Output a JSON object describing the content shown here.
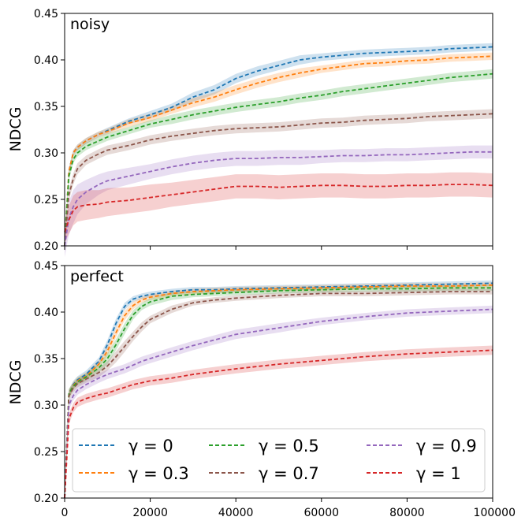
{
  "chart_data": [
    {
      "type": "line",
      "panel_label": "noisy",
      "xlabel": "",
      "ylabel": "NDCG",
      "xlim": [
        0,
        100000
      ],
      "ylim": [
        0.2,
        0.45
      ],
      "yticks": [
        0.2,
        0.25,
        0.3,
        0.35,
        0.4,
        0.45
      ],
      "ytick_labels": [
        "0.20",
        "0.25",
        "0.30",
        "0.35",
        "0.40",
        "0.45"
      ],
      "show_xtick_labels": false,
      "line_style": "dashed",
      "shaded_band": true,
      "x": [
        0,
        1000,
        2000,
        3000,
        5000,
        8000,
        10000,
        15000,
        20000,
        25000,
        30000,
        35000,
        40000,
        45000,
        50000,
        55000,
        60000,
        65000,
        70000,
        75000,
        80000,
        85000,
        90000,
        95000,
        100000
      ],
      "series": [
        {
          "name": "γ=0",
          "color": "#1f77b4",
          "values": [
            0.2,
            0.28,
            0.3,
            0.306,
            0.313,
            0.32,
            0.324,
            0.334,
            0.341,
            0.349,
            0.36,
            0.368,
            0.38,
            0.388,
            0.394,
            0.4,
            0.403,
            0.405,
            0.407,
            0.408,
            0.409,
            0.41,
            0.412,
            0.413,
            0.414
          ],
          "band": [
            0.005,
            0.004,
            0.003,
            0.003,
            0.003,
            0.003,
            0.003,
            0.003,
            0.004,
            0.004,
            0.005,
            0.005,
            0.005,
            0.005,
            0.005,
            0.005,
            0.004,
            0.004,
            0.004,
            0.004,
            0.004,
            0.004,
            0.004,
            0.004,
            0.004
          ]
        },
        {
          "name": "γ=0.3",
          "color": "#ff7f0e",
          "values": [
            0.2,
            0.28,
            0.3,
            0.306,
            0.313,
            0.32,
            0.323,
            0.332,
            0.338,
            0.346,
            0.354,
            0.36,
            0.368,
            0.375,
            0.381,
            0.386,
            0.39,
            0.393,
            0.396,
            0.397,
            0.399,
            0.4,
            0.402,
            0.403,
            0.404
          ],
          "band": [
            0.005,
            0.004,
            0.003,
            0.003,
            0.003,
            0.003,
            0.003,
            0.004,
            0.004,
            0.004,
            0.005,
            0.005,
            0.005,
            0.005,
            0.005,
            0.005,
            0.004,
            0.004,
            0.004,
            0.004,
            0.004,
            0.004,
            0.004,
            0.004,
            0.004
          ]
        },
        {
          "name": "γ=0.5",
          "color": "#2ca02c",
          "values": [
            0.2,
            0.275,
            0.293,
            0.3,
            0.307,
            0.313,
            0.317,
            0.324,
            0.331,
            0.336,
            0.341,
            0.345,
            0.349,
            0.352,
            0.355,
            0.359,
            0.362,
            0.366,
            0.369,
            0.372,
            0.375,
            0.378,
            0.381,
            0.383,
            0.385
          ],
          "band": [
            0.005,
            0.005,
            0.004,
            0.004,
            0.004,
            0.004,
            0.004,
            0.004,
            0.004,
            0.005,
            0.005,
            0.005,
            0.005,
            0.005,
            0.005,
            0.005,
            0.005,
            0.005,
            0.005,
            0.005,
            0.005,
            0.005,
            0.005,
            0.005,
            0.005
          ]
        },
        {
          "name": "γ=0.7",
          "color": "#8c564b",
          "values": [
            0.2,
            0.255,
            0.272,
            0.283,
            0.292,
            0.299,
            0.303,
            0.308,
            0.314,
            0.318,
            0.321,
            0.324,
            0.326,
            0.327,
            0.328,
            0.33,
            0.332,
            0.333,
            0.335,
            0.336,
            0.337,
            0.339,
            0.34,
            0.341,
            0.342
          ],
          "band": [
            0.006,
            0.006,
            0.006,
            0.006,
            0.005,
            0.005,
            0.005,
            0.005,
            0.005,
            0.005,
            0.005,
            0.005,
            0.005,
            0.005,
            0.005,
            0.005,
            0.005,
            0.005,
            0.005,
            0.005,
            0.005,
            0.005,
            0.005,
            0.005,
            0.005
          ]
        },
        {
          "name": "γ=0.9",
          "color": "#9467bd",
          "values": [
            0.2,
            0.23,
            0.242,
            0.25,
            0.258,
            0.266,
            0.27,
            0.275,
            0.28,
            0.285,
            0.289,
            0.292,
            0.294,
            0.294,
            0.295,
            0.295,
            0.296,
            0.297,
            0.297,
            0.298,
            0.298,
            0.299,
            0.3,
            0.301,
            0.301
          ],
          "band": [
            0.012,
            0.018,
            0.018,
            0.016,
            0.013,
            0.011,
            0.01,
            0.009,
            0.008,
            0.008,
            0.008,
            0.008,
            0.008,
            0.008,
            0.008,
            0.008,
            0.007,
            0.007,
            0.007,
            0.007,
            0.007,
            0.007,
            0.007,
            0.007,
            0.007
          ]
        },
        {
          "name": "γ=1",
          "color": "#d62728",
          "values": [
            0.215,
            0.228,
            0.238,
            0.242,
            0.244,
            0.245,
            0.247,
            0.249,
            0.252,
            0.255,
            0.258,
            0.261,
            0.264,
            0.264,
            0.263,
            0.264,
            0.265,
            0.265,
            0.264,
            0.264,
            0.265,
            0.265,
            0.266,
            0.266,
            0.265
          ],
          "band": [
            0.012,
            0.015,
            0.016,
            0.016,
            0.016,
            0.015,
            0.015,
            0.014,
            0.014,
            0.013,
            0.013,
            0.013,
            0.013,
            0.013,
            0.013,
            0.013,
            0.013,
            0.013,
            0.013,
            0.013,
            0.013,
            0.013,
            0.013,
            0.013,
            0.013
          ]
        }
      ]
    },
    {
      "type": "line",
      "panel_label": "perfect",
      "xlabel": "",
      "ylabel": "NDCG",
      "xlim": [
        0,
        100000
      ],
      "ylim": [
        0.2,
        0.45
      ],
      "yticks": [
        0.2,
        0.25,
        0.3,
        0.35,
        0.4,
        0.45
      ],
      "ytick_labels": [
        "0.20",
        "0.25",
        "0.30",
        "0.35",
        "0.40",
        "0.45"
      ],
      "xticks": [
        0,
        20000,
        40000,
        60000,
        80000,
        100000
      ],
      "xtick_labels": [
        "0",
        "20000",
        "40000",
        "60000",
        "80000",
        "100000"
      ],
      "show_xtick_labels": true,
      "line_style": "dashed",
      "shaded_band": true,
      "x": [
        0,
        1000,
        2000,
        3000,
        5000,
        8000,
        10000,
        12000,
        14000,
        16000,
        18000,
        20000,
        25000,
        30000,
        35000,
        40000,
        50000,
        60000,
        70000,
        80000,
        90000,
        100000
      ],
      "series": [
        {
          "name": "γ=0",
          "color": "#1f77b4",
          "values": [
            0.2,
            0.312,
            0.322,
            0.327,
            0.333,
            0.347,
            0.365,
            0.388,
            0.406,
            0.414,
            0.417,
            0.419,
            0.422,
            0.424,
            0.424,
            0.425,
            0.426,
            0.427,
            0.428,
            0.429,
            0.43,
            0.431
          ],
          "band": [
            0.006,
            0.005,
            0.004,
            0.004,
            0.004,
            0.004,
            0.005,
            0.005,
            0.004,
            0.003,
            0.003,
            0.003,
            0.003,
            0.003,
            0.003,
            0.003,
            0.003,
            0.003,
            0.003,
            0.003,
            0.003,
            0.003
          ]
        },
        {
          "name": "γ=0.3",
          "color": "#ff7f0e",
          "values": [
            0.2,
            0.312,
            0.321,
            0.326,
            0.331,
            0.344,
            0.358,
            0.378,
            0.396,
            0.407,
            0.413,
            0.416,
            0.42,
            0.422,
            0.423,
            0.424,
            0.425,
            0.426,
            0.427,
            0.428,
            0.428,
            0.429
          ],
          "band": [
            0.006,
            0.005,
            0.004,
            0.004,
            0.004,
            0.004,
            0.005,
            0.005,
            0.005,
            0.004,
            0.003,
            0.003,
            0.003,
            0.003,
            0.003,
            0.003,
            0.003,
            0.003,
            0.003,
            0.003,
            0.003,
            0.003
          ]
        },
        {
          "name": "γ=0.5",
          "color": "#2ca02c",
          "values": [
            0.2,
            0.312,
            0.32,
            0.325,
            0.33,
            0.34,
            0.35,
            0.365,
            0.382,
            0.397,
            0.406,
            0.411,
            0.417,
            0.419,
            0.42,
            0.421,
            0.423,
            0.424,
            0.425,
            0.425,
            0.426,
            0.426
          ],
          "band": [
            0.006,
            0.005,
            0.004,
            0.004,
            0.004,
            0.005,
            0.006,
            0.006,
            0.006,
            0.005,
            0.004,
            0.004,
            0.004,
            0.003,
            0.003,
            0.003,
            0.003,
            0.003,
            0.003,
            0.003,
            0.003,
            0.003
          ]
        },
        {
          "name": "γ=0.7",
          "color": "#8c564b",
          "values": [
            0.2,
            0.31,
            0.318,
            0.323,
            0.328,
            0.335,
            0.342,
            0.352,
            0.363,
            0.374,
            0.384,
            0.392,
            0.403,
            0.41,
            0.413,
            0.415,
            0.418,
            0.42,
            0.42,
            0.421,
            0.422,
            0.422
          ],
          "band": [
            0.006,
            0.005,
            0.004,
            0.004,
            0.004,
            0.005,
            0.005,
            0.006,
            0.006,
            0.005,
            0.005,
            0.004,
            0.004,
            0.003,
            0.003,
            0.003,
            0.003,
            0.003,
            0.003,
            0.003,
            0.003,
            0.003
          ]
        },
        {
          "name": "γ=0.9",
          "color": "#9467bd",
          "values": [
            0.2,
            0.3,
            0.31,
            0.316,
            0.322,
            0.329,
            0.333,
            0.336,
            0.339,
            0.343,
            0.347,
            0.35,
            0.357,
            0.364,
            0.37,
            0.376,
            0.383,
            0.39,
            0.395,
            0.399,
            0.401,
            0.403
          ],
          "band": [
            0.006,
            0.005,
            0.005,
            0.005,
            0.005,
            0.005,
            0.005,
            0.005,
            0.005,
            0.005,
            0.005,
            0.005,
            0.005,
            0.005,
            0.005,
            0.005,
            0.005,
            0.004,
            0.004,
            0.004,
            0.004,
            0.004
          ]
        },
        {
          "name": "γ=1",
          "color": "#d62728",
          "values": [
            0.2,
            0.285,
            0.297,
            0.303,
            0.307,
            0.311,
            0.313,
            0.316,
            0.319,
            0.322,
            0.324,
            0.326,
            0.329,
            0.333,
            0.336,
            0.339,
            0.344,
            0.348,
            0.352,
            0.355,
            0.357,
            0.359
          ],
          "band": [
            0.006,
            0.006,
            0.005,
            0.005,
            0.005,
            0.005,
            0.005,
            0.005,
            0.005,
            0.005,
            0.005,
            0.005,
            0.005,
            0.005,
            0.005,
            0.005,
            0.005,
            0.005,
            0.005,
            0.005,
            0.005,
            0.005
          ]
        }
      ]
    }
  ],
  "legend": {
    "placement": "lower-left of bottom panel, 3 columns",
    "entries": [
      {
        "label": "γ = 0",
        "color": "#1f77b4"
      },
      {
        "label": "γ = 0.3",
        "color": "#ff7f0e"
      },
      {
        "label": "γ = 0.5",
        "color": "#2ca02c"
      },
      {
        "label": "γ = 0.7",
        "color": "#8c564b"
      },
      {
        "label": "γ = 0.9",
        "color": "#9467bd"
      },
      {
        "label": "γ = 1",
        "color": "#d62728"
      }
    ]
  }
}
